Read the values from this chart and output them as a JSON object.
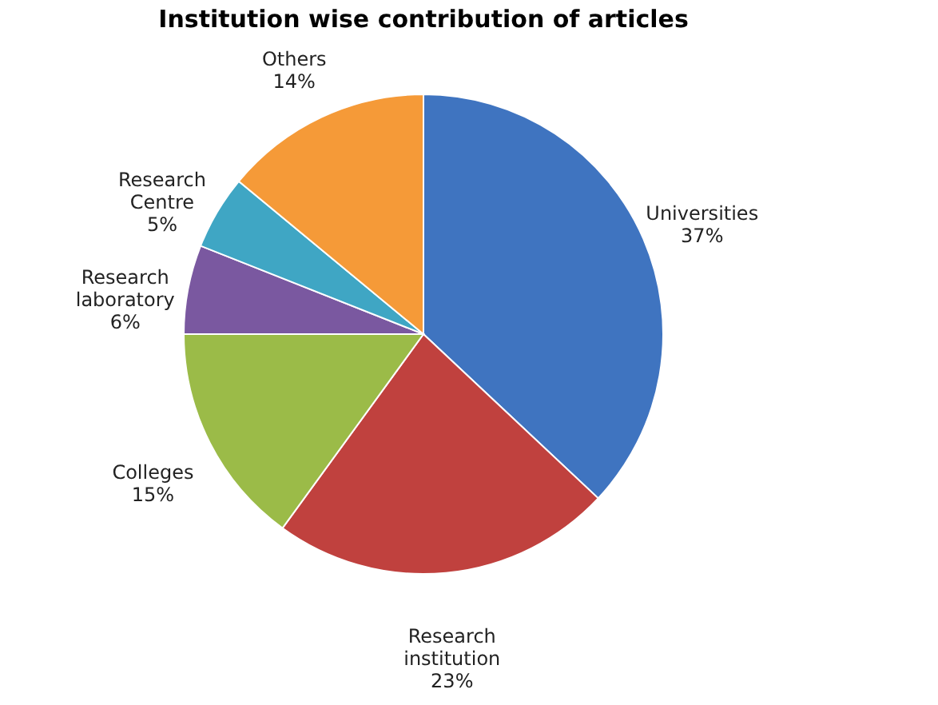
{
  "chart_data": {
    "type": "pie",
    "title": "Institution wise contribution of articles",
    "categories": [
      "Universities",
      "Research institution",
      "Colleges",
      "Research laboratory",
      "Research Centre",
      "Others"
    ],
    "values": [
      37,
      23,
      15,
      6,
      5,
      14
    ],
    "colors": [
      "#3f74c0",
      "#c0413e",
      "#9bbb48",
      "#7a58a0",
      "#3fa6c4",
      "#f59a38"
    ],
    "value_labels": [
      "37%",
      "23%",
      "15%",
      "6%",
      "5%",
      "14%"
    ],
    "legend": false
  }
}
